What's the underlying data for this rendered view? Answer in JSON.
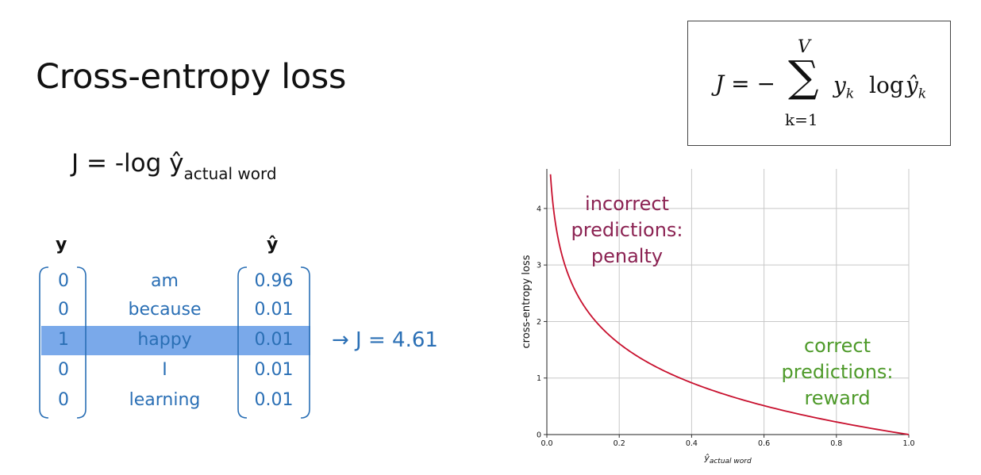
{
  "slide": {
    "title": "Cross-entropy loss",
    "equation": {
      "main": "J = -log ŷ",
      "subscript": "actual word"
    },
    "arrow_text": "→ J = 4.61"
  },
  "table": {
    "y_header": "y",
    "yhat_header": "ŷ",
    "rows": [
      {
        "y": "0",
        "word": "am",
        "yhat": "0.96"
      },
      {
        "y": "0",
        "word": "because",
        "yhat": "0.01"
      },
      {
        "y": "1",
        "word": "happy",
        "yhat": "0.01"
      },
      {
        "y": "0",
        "word": "I",
        "yhat": "0.01"
      },
      {
        "y": "0",
        "word": "learning",
        "yhat": "0.01"
      }
    ],
    "highlight_row": 2,
    "highlight_color": "#7aa9ea",
    "text_color": "#2a6fb5"
  },
  "formula": {
    "lhs": "J = −",
    "sum_symbol": "∑",
    "upper": "V",
    "lower": "k=1",
    "body": "y",
    "body_sub": "k",
    "log": "log",
    "yhat": "ŷ",
    "yhat_sub": "k"
  },
  "chart_data": {
    "type": "line",
    "function": "-log(x)",
    "x": [
      0.01,
      0.02,
      0.03,
      0.05,
      0.075,
      0.1,
      0.15,
      0.2,
      0.3,
      0.4,
      0.5,
      0.6,
      0.7,
      0.8,
      0.9,
      1.0
    ],
    "y": [
      4.61,
      3.91,
      3.51,
      3.0,
      2.59,
      2.3,
      1.9,
      1.61,
      1.2,
      0.92,
      0.69,
      0.51,
      0.36,
      0.22,
      0.11,
      0.0
    ],
    "xlim": [
      0,
      1.0
    ],
    "ylim": [
      0,
      4.7
    ],
    "xticks": [
      "0.0",
      "0.2",
      "0.4",
      "0.6",
      "0.8",
      "1.0"
    ],
    "yticks": [
      "0",
      "1",
      "2",
      "3",
      "4"
    ],
    "ylabel": "cross-entropy loss",
    "xlabel": "ŷ",
    "xlabel_sub": "actual word",
    "grid": true,
    "line_color": "#c8102e",
    "annotations": [
      {
        "lines": [
          "incorrect",
          "predictions:",
          "penalty"
        ],
        "color": "#8b2252"
      },
      {
        "lines": [
          "correct",
          "predictions:",
          "reward"
        ],
        "color": "#4e9a2a"
      }
    ]
  }
}
